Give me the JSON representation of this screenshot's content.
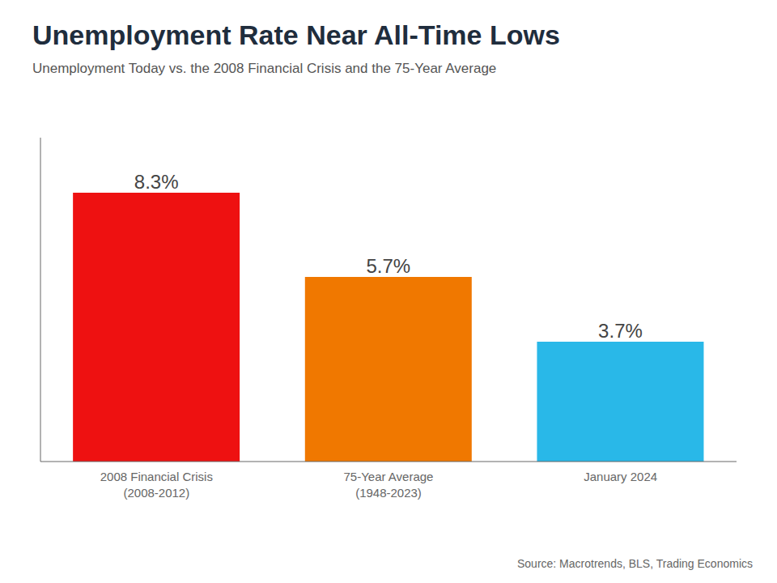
{
  "chart_data": {
    "type": "bar",
    "title": "Unemployment Rate Near All-Time Lows",
    "subtitle": "Unemployment Today vs. the 2008 Financial Crisis and the 75-Year Average",
    "categories": [
      "2008 Financial Crisis\n(2008-2012)",
      "75-Year Average\n(1948-2023)",
      "January 2024"
    ],
    "values": [
      8.3,
      5.7,
      3.7
    ],
    "value_labels": [
      "8.3%",
      "5.7%",
      "3.7%"
    ],
    "colors": [
      "#ee1111",
      "#f07800",
      "#29b8e8"
    ],
    "ylim": [
      0,
      10
    ],
    "data_labels": true,
    "tick_labels": "x",
    "grid": false,
    "annotations": [
      "Source: Macrotrends, BLS, Trading Economics"
    ]
  }
}
